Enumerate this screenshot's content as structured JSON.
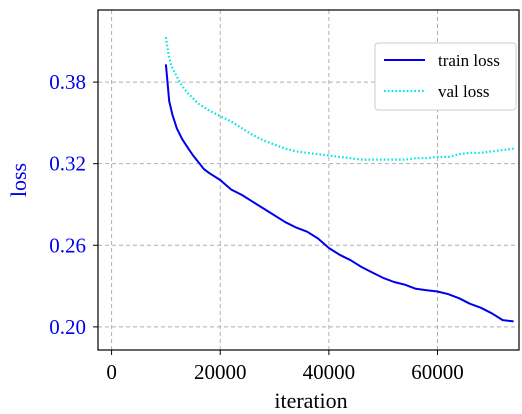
{
  "chart_data": {
    "type": "line",
    "xlabel": "iteration",
    "ylabel": "loss",
    "xlim": [
      -2500,
      75000
    ],
    "ylim": [
      0.183,
      0.433
    ],
    "x_ticks": [
      0,
      20000,
      40000,
      60000
    ],
    "x_tick_labels": [
      "0",
      "20000",
      "40000",
      "60000"
    ],
    "y_ticks": [
      0.2,
      0.26,
      0.32,
      0.38
    ],
    "y_tick_labels": [
      "0.20",
      "0.26",
      "0.32",
      "0.38"
    ],
    "grid": true,
    "legend_position": "top-right",
    "series": [
      {
        "name": "train loss",
        "color": "#0000ee",
        "style": "solid",
        "x": [
          10000,
          10600,
          11200,
          12000,
          13000,
          14000,
          15000,
          16000,
          17000,
          18000,
          20000,
          22000,
          24000,
          26000,
          28000,
          30000,
          32000,
          34000,
          36000,
          38000,
          40000,
          42000,
          44000,
          46000,
          48000,
          50000,
          52000,
          54000,
          56000,
          58000,
          60000,
          62000,
          64000,
          66000,
          68000,
          70000,
          72000,
          74000
        ],
        "y": [
          0.393,
          0.366,
          0.356,
          0.346,
          0.338,
          0.332,
          0.326,
          0.321,
          0.316,
          0.313,
          0.308,
          0.301,
          0.297,
          0.292,
          0.287,
          0.282,
          0.277,
          0.273,
          0.27,
          0.265,
          0.258,
          0.253,
          0.249,
          0.244,
          0.24,
          0.236,
          0.233,
          0.231,
          0.228,
          0.227,
          0.226,
          0.224,
          0.221,
          0.217,
          0.214,
          0.21,
          0.205,
          0.204
        ]
      },
      {
        "name": "val loss",
        "color": "#00e5e5",
        "style": "dotted",
        "x": [
          10000,
          10500,
          11000,
          12000,
          13000,
          14000,
          15000,
          16000,
          18000,
          20000,
          22000,
          24000,
          26000,
          28000,
          30000,
          32000,
          34000,
          36000,
          38000,
          40000,
          42000,
          44000,
          46000,
          48000,
          50000,
          52000,
          54000,
          56000,
          58000,
          60000,
          62000,
          64000,
          66000,
          68000,
          70000,
          72000,
          74000
        ],
        "y": [
          0.413,
          0.4,
          0.392,
          0.384,
          0.377,
          0.372,
          0.368,
          0.364,
          0.359,
          0.355,
          0.351,
          0.346,
          0.341,
          0.337,
          0.334,
          0.331,
          0.329,
          0.328,
          0.327,
          0.326,
          0.325,
          0.324,
          0.323,
          0.323,
          0.323,
          0.323,
          0.323,
          0.324,
          0.324,
          0.325,
          0.325,
          0.327,
          0.328,
          0.328,
          0.329,
          0.33,
          0.331
        ]
      }
    ]
  }
}
